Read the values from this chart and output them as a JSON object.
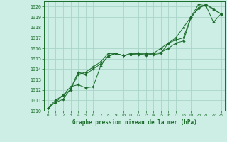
{
  "title": "Graphe pression niveau de la mer (hPa)",
  "bg_color": "#cceee4",
  "grid_color": "#aad4c8",
  "line_color": "#1a6b2a",
  "marker_color": "#1a6b2a",
  "xlim": [
    -0.5,
    23.5
  ],
  "ylim": [
    1010,
    1020.5
  ],
  "xtick_labels": [
    "0",
    "1",
    "2",
    "3",
    "4",
    "5",
    "6",
    "7",
    "8",
    "9",
    "10",
    "11",
    "12",
    "13",
    "14",
    "15",
    "16",
    "17",
    "18",
    "19",
    "20",
    "21",
    "22",
    "23"
  ],
  "xtick_pos": [
    0,
    1,
    2,
    3,
    4,
    5,
    6,
    7,
    8,
    9,
    10,
    11,
    12,
    13,
    14,
    15,
    16,
    17,
    18,
    19,
    20,
    21,
    22,
    23
  ],
  "yticks": [
    1010,
    1011,
    1012,
    1013,
    1014,
    1015,
    1016,
    1017,
    1018,
    1019,
    1020
  ],
  "series1_x": [
    0,
    1,
    2,
    3,
    4,
    5,
    6,
    7,
    8,
    9,
    10,
    11,
    12,
    13,
    14,
    15,
    16,
    17,
    18,
    19,
    20,
    21,
    22,
    23
  ],
  "series1_y": [
    1010.3,
    1010.8,
    1011.1,
    1012.1,
    1013.7,
    1013.5,
    1014.0,
    1014.5,
    1015.2,
    1015.5,
    1015.3,
    1015.4,
    1015.5,
    1015.3,
    1015.5,
    1015.6,
    1016.0,
    1016.5,
    1016.7,
    1018.9,
    1019.9,
    1020.2,
    1019.8,
    1019.3
  ],
  "series2_x": [
    0,
    1,
    2,
    3,
    4,
    5,
    6,
    7,
    8,
    9,
    10,
    11,
    12,
    13,
    14,
    15,
    16,
    17,
    18,
    19,
    20,
    21,
    22,
    23
  ],
  "series2_y": [
    1010.3,
    1011.0,
    1011.5,
    1012.3,
    1012.5,
    1012.2,
    1012.3,
    1014.3,
    1015.3,
    1015.5,
    1015.3,
    1015.4,
    1015.4,
    1015.4,
    1015.4,
    1015.5,
    1016.5,
    1017.0,
    1018.0,
    1019.0,
    1020.2,
    1020.1,
    1018.5,
    1019.3
  ],
  "series3_x": [
    0,
    1,
    2,
    3,
    4,
    5,
    6,
    7,
    8,
    9,
    10,
    11,
    12,
    13,
    14,
    15,
    16,
    17,
    18,
    19,
    20,
    21,
    22,
    23
  ],
  "series3_y": [
    1010.3,
    1010.8,
    1011.5,
    1012.0,
    1013.5,
    1013.7,
    1014.2,
    1014.7,
    1015.5,
    1015.5,
    1015.3,
    1015.5,
    1015.5,
    1015.5,
    1015.5,
    1016.0,
    1016.5,
    1016.8,
    1017.0,
    1019.0,
    1019.8,
    1020.2,
    1019.7,
    1019.3
  ]
}
